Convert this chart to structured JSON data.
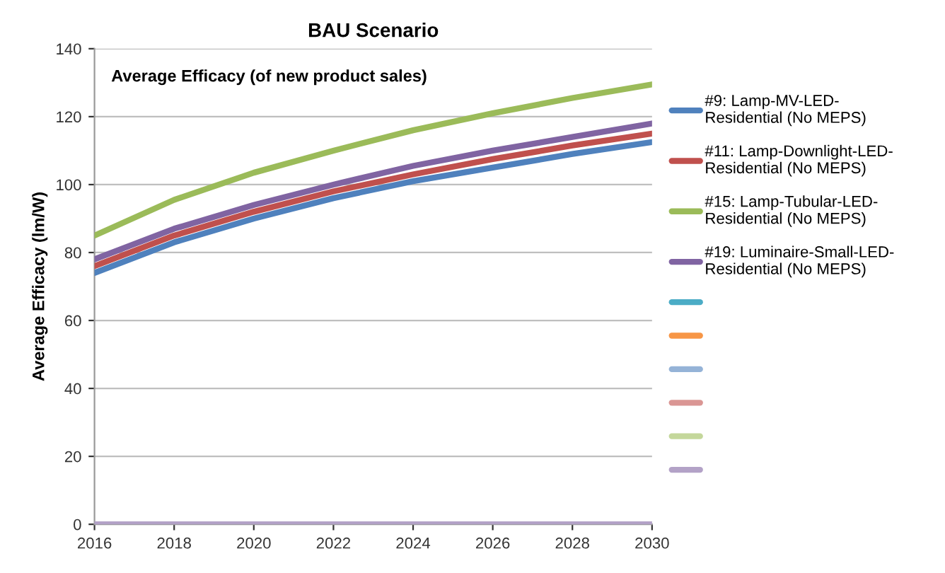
{
  "chart_data": {
    "type": "line",
    "title": "BAU Scenario",
    "ylabel": "Average Efficacy (lm/W)",
    "annotations": [
      "Average Efficacy (of new product sales)"
    ],
    "x": [
      2016,
      2018,
      2020,
      2022,
      2024,
      2026,
      2028,
      2030
    ],
    "series": [
      {
        "name": "#9: Lamp-MV-LED-\nResidential (No MEPS)",
        "color": "#4f81bd",
        "values": [
          74,
          83,
          90,
          96,
          101,
          105,
          109,
          112.5
        ]
      },
      {
        "name": "#11: Lamp-Downlight-LED-\nResidential (No MEPS)",
        "color": "#c0504d",
        "values": [
          76,
          85,
          92,
          98,
          103,
          107.5,
          111.5,
          115
        ]
      },
      {
        "name": "#15: Lamp-Tubular-LED-\nResidential (No MEPS)",
        "color": "#9bbb59",
        "values": [
          85,
          95.5,
          103.5,
          110,
          116,
          121,
          125.5,
          129.5
        ]
      },
      {
        "name": "#19: Luminaire-Small-LED-\nResidential (No MEPS)",
        "color": "#8064a2",
        "values": [
          78,
          87,
          94,
          100,
          105.5,
          110,
          114,
          118
        ]
      },
      {
        "color": "#4bacc6",
        "values": [
          null,
          null,
          null,
          null,
          null,
          null,
          null,
          null
        ]
      },
      {
        "color": "#f79646",
        "values": [
          null,
          null,
          null,
          null,
          null,
          null,
          null,
          null
        ]
      },
      {
        "color": "#95b3d7",
        "values": [
          null,
          null,
          null,
          null,
          null,
          null,
          null,
          null
        ]
      },
      {
        "color": "#da9694",
        "values": [
          null,
          null,
          null,
          null,
          null,
          null,
          null,
          null
        ]
      },
      {
        "color": "#c4d79b",
        "values": [
          null,
          null,
          null,
          null,
          null,
          null,
          null,
          null
        ]
      },
      {
        "color": "#b3a2c7",
        "values": [
          0,
          0,
          0,
          0,
          0,
          0,
          0,
          0
        ]
      }
    ],
    "xlim": [
      2016,
      2030
    ],
    "xticks": [
      2016,
      2018,
      2020,
      2022,
      2024,
      2026,
      2028,
      2030
    ],
    "ylim": [
      0,
      140
    ],
    "yticks": [
      0,
      20,
      40,
      60,
      80,
      100,
      120,
      140
    ],
    "grid": "y",
    "legend": "right",
    "marker": "none",
    "line_style": "solid"
  }
}
